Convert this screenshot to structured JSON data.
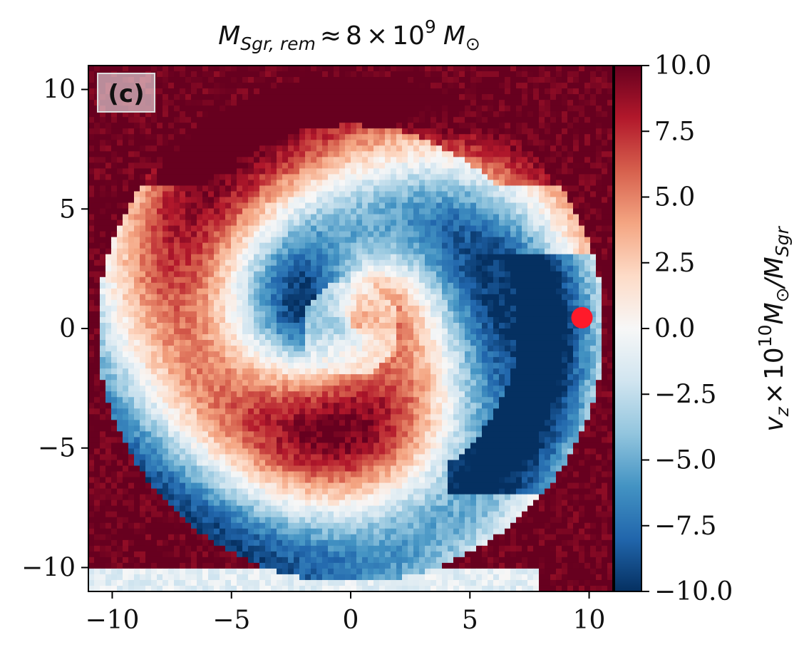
{
  "chart_data": {
    "type": "heatmap",
    "title": {
      "main": "M",
      "sub": "Sgr, rem",
      "approx": "≈",
      "coef": "8",
      "times": "×",
      "base": "10",
      "exp": "9",
      "unit": "M",
      "unit_sub": "⊙"
    },
    "panel_label": "(c)",
    "xlim": [
      -11,
      11
    ],
    "ylim": [
      -11,
      11
    ],
    "x_ticks": [
      -10,
      -5,
      0,
      5,
      10
    ],
    "y_ticks": [
      -10,
      -5,
      0,
      5,
      10
    ],
    "x_tick_labels": [
      "−10",
      "−5",
      "0",
      "5",
      "10"
    ],
    "y_tick_labels": [
      "−10",
      "−5",
      "0",
      "5",
      "10"
    ],
    "colorbar": {
      "range": [
        -10,
        10
      ],
      "ticks": [
        10,
        7.5,
        5,
        2.5,
        0,
        -2.5,
        -5,
        -7.5,
        -10
      ],
      "tick_labels": [
        "10.0",
        "7.5",
        "5.0",
        "2.5",
        "0.0",
        "−2.5",
        "−5.0",
        "−7.5",
        "−10.0"
      ],
      "colormap": "RdBu_r",
      "label": {
        "v": "v",
        "v_sub": "z",
        "times": "×",
        "base": "10",
        "exp": "10",
        "m": "M",
        "m_sub": "⊙",
        "slash": "/M",
        "slash_sub": "Sgr"
      }
    },
    "marker": {
      "x": 9.7,
      "y": 0.45,
      "color": "#ff1a2a"
    },
    "grid": false
  }
}
